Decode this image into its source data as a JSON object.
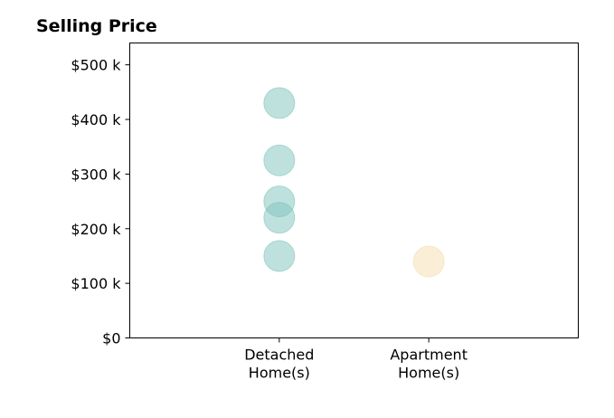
{
  "chart_data": {
    "type": "scatter",
    "title": "Selling Price",
    "xlabel": "",
    "ylabel": "",
    "categories": [
      [
        "Detached",
        "Home(s)"
      ],
      [
        "Apartment",
        "Home(s)"
      ]
    ],
    "x_range": [
      -1,
      2
    ],
    "ylim": [
      0,
      540000
    ],
    "y_ticks": [
      0,
      100000,
      200000,
      300000,
      400000,
      500000
    ],
    "y_tick_labels": [
      "$0",
      "$100 k",
      "$200 k",
      "$300 k",
      "$400 k",
      "$500 k"
    ],
    "series": [
      {
        "category": 0,
        "color": "#7fc4bd",
        "values": [
          430000,
          325000,
          250000,
          220000,
          150000
        ]
      },
      {
        "category": 1,
        "color": "#f5deb0",
        "values": [
          140000
        ]
      }
    ],
    "grid": false,
    "legend": "none"
  }
}
